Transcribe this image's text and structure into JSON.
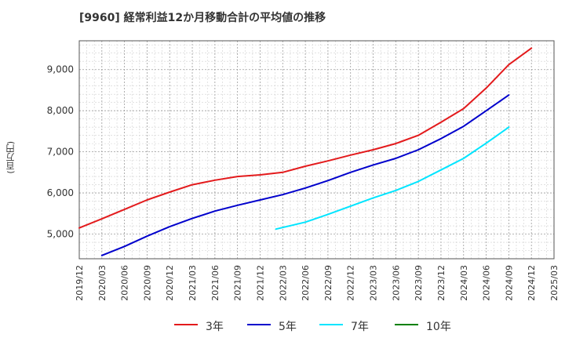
{
  "chart_data": {
    "type": "line",
    "title": "[9960]  経常利益12か月移動合計の平均値の推移",
    "ylabel": "(百万円)",
    "xlabel": "",
    "ylim": [
      4400,
      9700
    ],
    "yticks": [
      5000,
      6000,
      7000,
      8000,
      9000
    ],
    "ytick_labels": [
      "5,000",
      "6,000",
      "7,000",
      "8,000",
      "9,000"
    ],
    "x_tick_labels": [
      "2019/12",
      "2020/03",
      "2020/06",
      "2020/09",
      "2020/12",
      "2021/03",
      "2021/06",
      "2021/09",
      "2021/12",
      "2022/03",
      "2022/06",
      "2022/09",
      "2022/12",
      "2023/03",
      "2023/06",
      "2023/09",
      "2023/12",
      "2024/03",
      "2024/06",
      "2024/09",
      "2024/12",
      "2025/03"
    ],
    "grid": true,
    "legend_position": "bottom",
    "series": [
      {
        "name": "3年",
        "color": "#e31a1c",
        "values": [
          5150,
          5370,
          5600,
          5830,
          6020,
          6200,
          6310,
          6400,
          6440,
          6500,
          6650,
          6780,
          6920,
          7050,
          7200,
          7400,
          7720,
          8050,
          8550,
          9120,
          9520
        ]
      },
      {
        "name": "5年",
        "color": "#0000cc",
        "values": [
          null,
          4480,
          4700,
          4950,
          5180,
          5380,
          5560,
          5700,
          5830,
          5960,
          6120,
          6300,
          6500,
          6680,
          6840,
          7050,
          7320,
          7620,
          8000,
          8380,
          null
        ]
      },
      {
        "name": "7年",
        "color": "#00e5ff",
        "values": [
          null,
          null,
          null,
          null,
          null,
          null,
          null,
          null,
          null,
          5120,
          5290,
          5480,
          5680,
          5880,
          6060,
          6280,
          6560,
          6840,
          7210,
          7600,
          null
        ]
      },
      {
        "name": "10年",
        "color": "#008000",
        "values": []
      }
    ],
    "series_x_index_override": {
      "3年": [
        0,
        1,
        2,
        3,
        4,
        5,
        6,
        7,
        8,
        9,
        10,
        11,
        12,
        13,
        14,
        15,
        16,
        17,
        18,
        19,
        20
      ],
      "5年": [
        1,
        2,
        3,
        4,
        5,
        6,
        7,
        8,
        9,
        10,
        11,
        12,
        13,
        14,
        15,
        16,
        17,
        18,
        19,
        20
      ],
      "7年": [
        8.7,
        10,
        11,
        12,
        13,
        14,
        15,
        16,
        17,
        18,
        19,
        20
      ]
    }
  }
}
